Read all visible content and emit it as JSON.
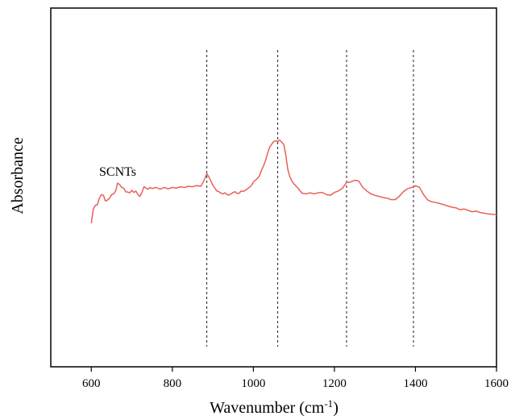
{
  "chart_data": {
    "type": "line",
    "xlabel": "Wavenumber (cm",
    "xlabel_sup": "-1",
    "xlabel_close": ")",
    "ylabel": "Absorbance",
    "xlim": [
      500,
      1600
    ],
    "ylim": [
      0,
      1
    ],
    "x_ticks": [
      600,
      800,
      1000,
      1200,
      1400,
      1600
    ],
    "y_ticks_shown": false,
    "grid": false,
    "annotation": "SCNTs",
    "reference_lines_x": [
      885,
      1060,
      1230,
      1395
    ],
    "line_color": "#e8605a",
    "ref_line_color": "#333333",
    "series": [
      {
        "points": [
          [
            600,
            0.4
          ],
          [
            605,
            0.44
          ],
          [
            610,
            0.45
          ],
          [
            615,
            0.452
          ],
          [
            620,
            0.47
          ],
          [
            625,
            0.48
          ],
          [
            630,
            0.478
          ],
          [
            635,
            0.462
          ],
          [
            640,
            0.465
          ],
          [
            645,
            0.47
          ],
          [
            650,
            0.48
          ],
          [
            655,
            0.482
          ],
          [
            660,
            0.49
          ],
          [
            665,
            0.512
          ],
          [
            670,
            0.508
          ],
          [
            675,
            0.5
          ],
          [
            680,
            0.498
          ],
          [
            685,
            0.488
          ],
          [
            690,
            0.487
          ],
          [
            695,
            0.485
          ],
          [
            700,
            0.492
          ],
          [
            705,
            0.486
          ],
          [
            710,
            0.49
          ],
          [
            715,
            0.48
          ],
          [
            720,
            0.475
          ],
          [
            725,
            0.486
          ],
          [
            730,
            0.502
          ],
          [
            735,
            0.498
          ],
          [
            740,
            0.495
          ],
          [
            745,
            0.5
          ],
          [
            750,
            0.497
          ],
          [
            760,
            0.5
          ],
          [
            770,
            0.495
          ],
          [
            780,
            0.5
          ],
          [
            790,
            0.496
          ],
          [
            800,
            0.5
          ],
          [
            810,
            0.498
          ],
          [
            820,
            0.502
          ],
          [
            830,
            0.5
          ],
          [
            840,
            0.503
          ],
          [
            850,
            0.502
          ],
          [
            860,
            0.505
          ],
          [
            870,
            0.503
          ],
          [
            875,
            0.512
          ],
          [
            880,
            0.525
          ],
          [
            885,
            0.538
          ],
          [
            890,
            0.53
          ],
          [
            895,
            0.518
          ],
          [
            900,
            0.506
          ],
          [
            905,
            0.498
          ],
          [
            910,
            0.49
          ],
          [
            915,
            0.488
          ],
          [
            920,
            0.484
          ],
          [
            925,
            0.482
          ],
          [
            930,
            0.485
          ],
          [
            935,
            0.48
          ],
          [
            940,
            0.479
          ],
          [
            945,
            0.482
          ],
          [
            950,
            0.486
          ],
          [
            955,
            0.488
          ],
          [
            960,
            0.483
          ],
          [
            965,
            0.484
          ],
          [
            970,
            0.49
          ],
          [
            975,
            0.489
          ],
          [
            980,
            0.492
          ],
          [
            985,
            0.496
          ],
          [
            990,
            0.5
          ],
          [
            995,
            0.505
          ],
          [
            1000,
            0.515
          ],
          [
            1005,
            0.52
          ],
          [
            1010,
            0.525
          ],
          [
            1015,
            0.532
          ],
          [
            1020,
            0.548
          ],
          [
            1025,
            0.56
          ],
          [
            1030,
            0.575
          ],
          [
            1035,
            0.595
          ],
          [
            1040,
            0.612
          ],
          [
            1045,
            0.62
          ],
          [
            1050,
            0.628
          ],
          [
            1055,
            0.63
          ],
          [
            1060,
            0.628
          ],
          [
            1065,
            0.632
          ],
          [
            1070,
            0.626
          ],
          [
            1075,
            0.62
          ],
          [
            1080,
            0.59
          ],
          [
            1085,
            0.55
          ],
          [
            1090,
            0.53
          ],
          [
            1095,
            0.518
          ],
          [
            1100,
            0.51
          ],
          [
            1110,
            0.498
          ],
          [
            1120,
            0.484
          ],
          [
            1130,
            0.482
          ],
          [
            1140,
            0.485
          ],
          [
            1150,
            0.482
          ],
          [
            1160,
            0.485
          ],
          [
            1170,
            0.486
          ],
          [
            1180,
            0.48
          ],
          [
            1190,
            0.478
          ],
          [
            1200,
            0.486
          ],
          [
            1210,
            0.49
          ],
          [
            1220,
            0.498
          ],
          [
            1230,
            0.514
          ],
          [
            1240,
            0.515
          ],
          [
            1250,
            0.52
          ],
          [
            1260,
            0.518
          ],
          [
            1270,
            0.5
          ],
          [
            1280,
            0.49
          ],
          [
            1290,
            0.482
          ],
          [
            1300,
            0.478
          ],
          [
            1310,
            0.475
          ],
          [
            1320,
            0.472
          ],
          [
            1330,
            0.47
          ],
          [
            1340,
            0.466
          ],
          [
            1350,
            0.466
          ],
          [
            1360,
            0.475
          ],
          [
            1370,
            0.488
          ],
          [
            1380,
            0.496
          ],
          [
            1390,
            0.5
          ],
          [
            1395,
            0.5
          ],
          [
            1400,
            0.505
          ],
          [
            1410,
            0.5
          ],
          [
            1420,
            0.48
          ],
          [
            1430,
            0.465
          ],
          [
            1440,
            0.46
          ],
          [
            1450,
            0.458
          ],
          [
            1460,
            0.455
          ],
          [
            1470,
            0.452
          ],
          [
            1480,
            0.448
          ],
          [
            1490,
            0.445
          ],
          [
            1500,
            0.443
          ],
          [
            1510,
            0.438
          ],
          [
            1520,
            0.44
          ],
          [
            1530,
            0.436
          ],
          [
            1540,
            0.432
          ],
          [
            1550,
            0.434
          ],
          [
            1560,
            0.43
          ],
          [
            1570,
            0.428
          ],
          [
            1580,
            0.426
          ],
          [
            1590,
            0.425
          ],
          [
            1600,
            0.424
          ]
        ]
      }
    ]
  }
}
